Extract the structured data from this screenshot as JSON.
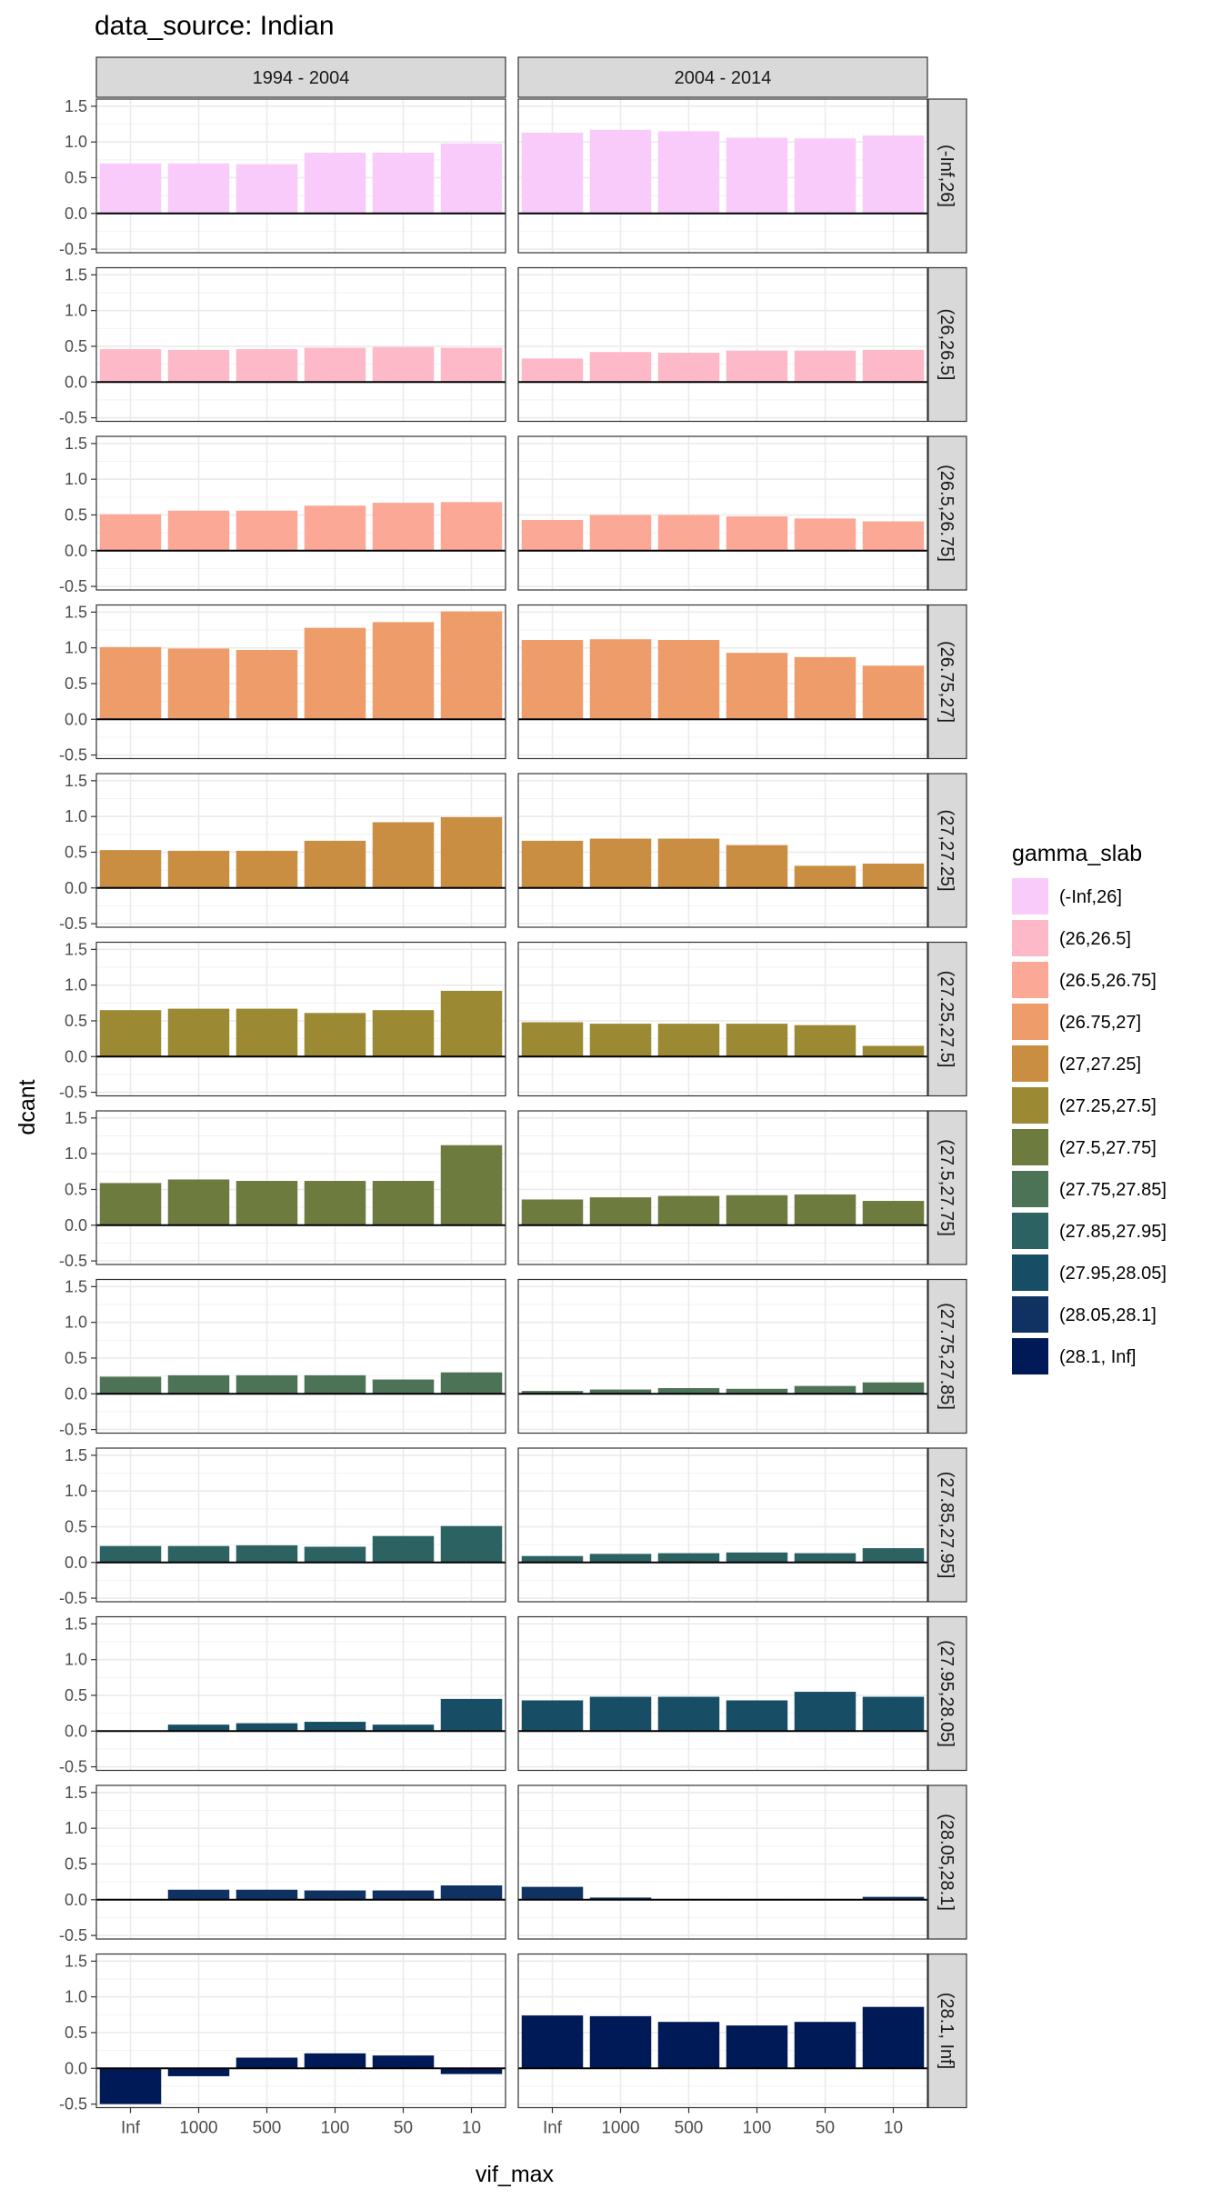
{
  "chart_data": {
    "type": "bar",
    "title": "data_source: Indian",
    "xlabel": "vif_max",
    "ylabel": "dcant",
    "ylim": [
      -0.55,
      1.6
    ],
    "y_ticks": [
      -0.5,
      0.0,
      0.5,
      1.0,
      1.5
    ],
    "y_tick_labels": [
      "-0.5",
      "0.0",
      "0.5",
      "1.0",
      "1.5"
    ],
    "categories": [
      "Inf",
      "1000",
      "500",
      "100",
      "50",
      "10"
    ],
    "col_facets": [
      "1994 - 2004",
      "2004 - 2014"
    ],
    "legend": {
      "title": "gamma_slab",
      "placement": "right",
      "items": [
        {
          "label": "(-Inf,26]",
          "color": "#F9CBFA"
        },
        {
          "label": "(26,26.5]",
          "color": "#FDB9C7"
        },
        {
          "label": "(26.5,26.75]",
          "color": "#FCA896"
        },
        {
          "label": "(26.75,27]",
          "color": "#EE9C69"
        },
        {
          "label": "(27,27.25]",
          "color": "#C98E42"
        },
        {
          "label": "(27.25,27.5]",
          "color": "#9C8933"
        },
        {
          "label": "(27.5,27.75]",
          "color": "#6E7B3F"
        },
        {
          "label": "(27.75,27.85]",
          "color": "#4C7355"
        },
        {
          "label": "(27.85,27.95]",
          "color": "#2C6262"
        },
        {
          "label": "(27.95,28.05]",
          "color": "#184E65"
        },
        {
          "label": "(28.05,28.1]",
          "color": "#0F3263"
        },
        {
          "label": "(28.1, Inf]",
          "color": "#001A57"
        }
      ]
    },
    "rows": [
      {
        "label": "(-Inf,26]",
        "color": "#F9CBFA",
        "values": [
          [
            0.7,
            0.7,
            0.69,
            0.85,
            0.85,
            0.98
          ],
          [
            1.13,
            1.17,
            1.15,
            1.06,
            1.05,
            1.09
          ]
        ]
      },
      {
        "label": "(26,26.5]",
        "color": "#FDB9C7",
        "values": [
          [
            0.46,
            0.45,
            0.46,
            0.48,
            0.49,
            0.48
          ],
          [
            0.33,
            0.42,
            0.41,
            0.44,
            0.44,
            0.45
          ]
        ]
      },
      {
        "label": "(26.5,26.75]",
        "color": "#FCA896",
        "values": [
          [
            0.51,
            0.56,
            0.56,
            0.63,
            0.67,
            0.68
          ],
          [
            0.43,
            0.5,
            0.5,
            0.48,
            0.45,
            0.41
          ]
        ]
      },
      {
        "label": "(26.75,27]",
        "color": "#EE9C69",
        "values": [
          [
            1.01,
            0.99,
            0.97,
            1.28,
            1.36,
            1.51
          ],
          [
            1.11,
            1.12,
            1.11,
            0.93,
            0.87,
            0.75
          ]
        ]
      },
      {
        "label": "(27,27.25]",
        "color": "#C98E42",
        "values": [
          [
            0.53,
            0.52,
            0.52,
            0.66,
            0.92,
            0.99
          ],
          [
            0.66,
            0.69,
            0.69,
            0.6,
            0.31,
            0.34
          ]
        ]
      },
      {
        "label": "(27.25,27.5]",
        "color": "#9C8933",
        "values": [
          [
            0.65,
            0.67,
            0.67,
            0.61,
            0.65,
            0.92
          ],
          [
            0.48,
            0.46,
            0.46,
            0.46,
            0.44,
            0.15
          ]
        ]
      },
      {
        "label": "(27.5,27.75]",
        "color": "#6E7B3F",
        "values": [
          [
            0.59,
            0.64,
            0.62,
            0.62,
            0.62,
            1.12
          ],
          [
            0.36,
            0.39,
            0.41,
            0.42,
            0.43,
            0.34
          ]
        ]
      },
      {
        "label": "(27.75,27.85]",
        "color": "#4C7355",
        "values": [
          [
            0.24,
            0.26,
            0.26,
            0.26,
            0.2,
            0.3
          ],
          [
            0.04,
            0.06,
            0.08,
            0.07,
            0.11,
            0.16
          ]
        ]
      },
      {
        "label": "(27.85,27.95]",
        "color": "#2C6262",
        "values": [
          [
            0.23,
            0.23,
            0.24,
            0.22,
            0.37,
            0.51
          ],
          [
            0.09,
            0.12,
            0.13,
            0.14,
            0.13,
            0.2
          ]
        ]
      },
      {
        "label": "(27.95,28.05]",
        "color": "#184E65",
        "values": [
          [
            0.0,
            0.09,
            0.11,
            0.13,
            0.09,
            0.45
          ],
          [
            0.43,
            0.48,
            0.48,
            0.43,
            0.55,
            0.48
          ]
        ]
      },
      {
        "label": "(28.05,28.1]",
        "color": "#0F3263",
        "values": [
          [
            0.0,
            0.14,
            0.14,
            0.13,
            0.13,
            0.2
          ],
          [
            0.18,
            0.03,
            0.01,
            -0.01,
            -0.01,
            0.04
          ]
        ]
      },
      {
        "label": "(28.1, Inf]",
        "color": "#001A57",
        "values": [
          [
            -0.5,
            -0.11,
            0.15,
            0.21,
            0.18,
            -0.08
          ],
          [
            0.74,
            0.73,
            0.65,
            0.6,
            0.65,
            0.86
          ]
        ]
      }
    ]
  }
}
